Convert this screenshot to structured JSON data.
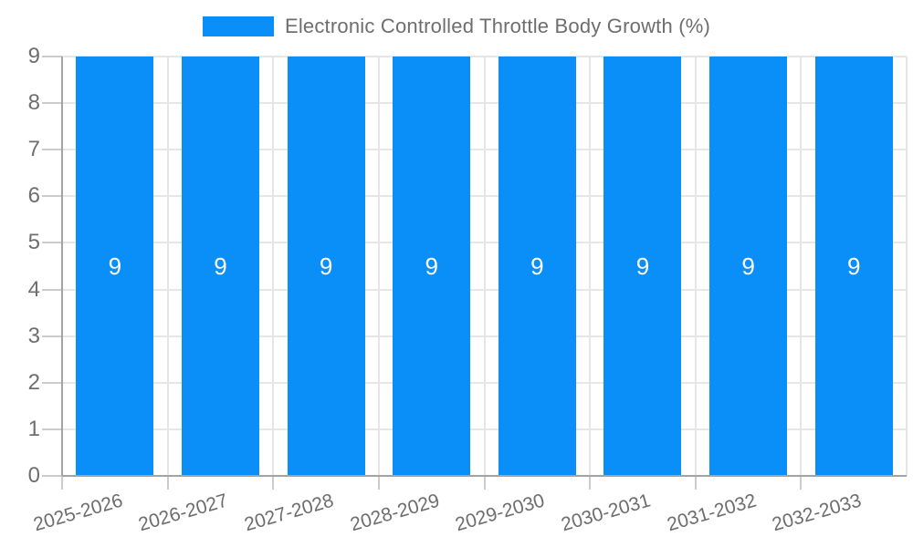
{
  "chart_data": {
    "type": "bar",
    "title": "Electronic Controlled Throttle Body Growth (%)",
    "categories": [
      "2025-2026",
      "2026-2027",
      "2027-2028",
      "2028-2029",
      "2029-2030",
      "2030-2031",
      "2031-2032",
      "2032-2033"
    ],
    "values": [
      9,
      9,
      9,
      9,
      9,
      9,
      9,
      9
    ],
    "bar_labels": [
      "9",
      "9",
      "9",
      "9",
      "9",
      "9",
      "9",
      "9"
    ],
    "xlabel": "",
    "ylabel": "",
    "ylim": [
      0,
      9
    ],
    "y_ticks": [
      0,
      1,
      2,
      3,
      4,
      5,
      6,
      7,
      8,
      9
    ],
    "grid": true,
    "legend_position": "top",
    "x_label_rotation_deg": -16,
    "colors": {
      "bar": "#0A8EF8",
      "bar_label": "#FFFFFF",
      "axis_text": "#6E6E6E",
      "gridline": "#E6E6E6",
      "axis_line": "#A3A3A3",
      "tick": "#CCCCCC",
      "background": "#FFFFFF"
    }
  }
}
